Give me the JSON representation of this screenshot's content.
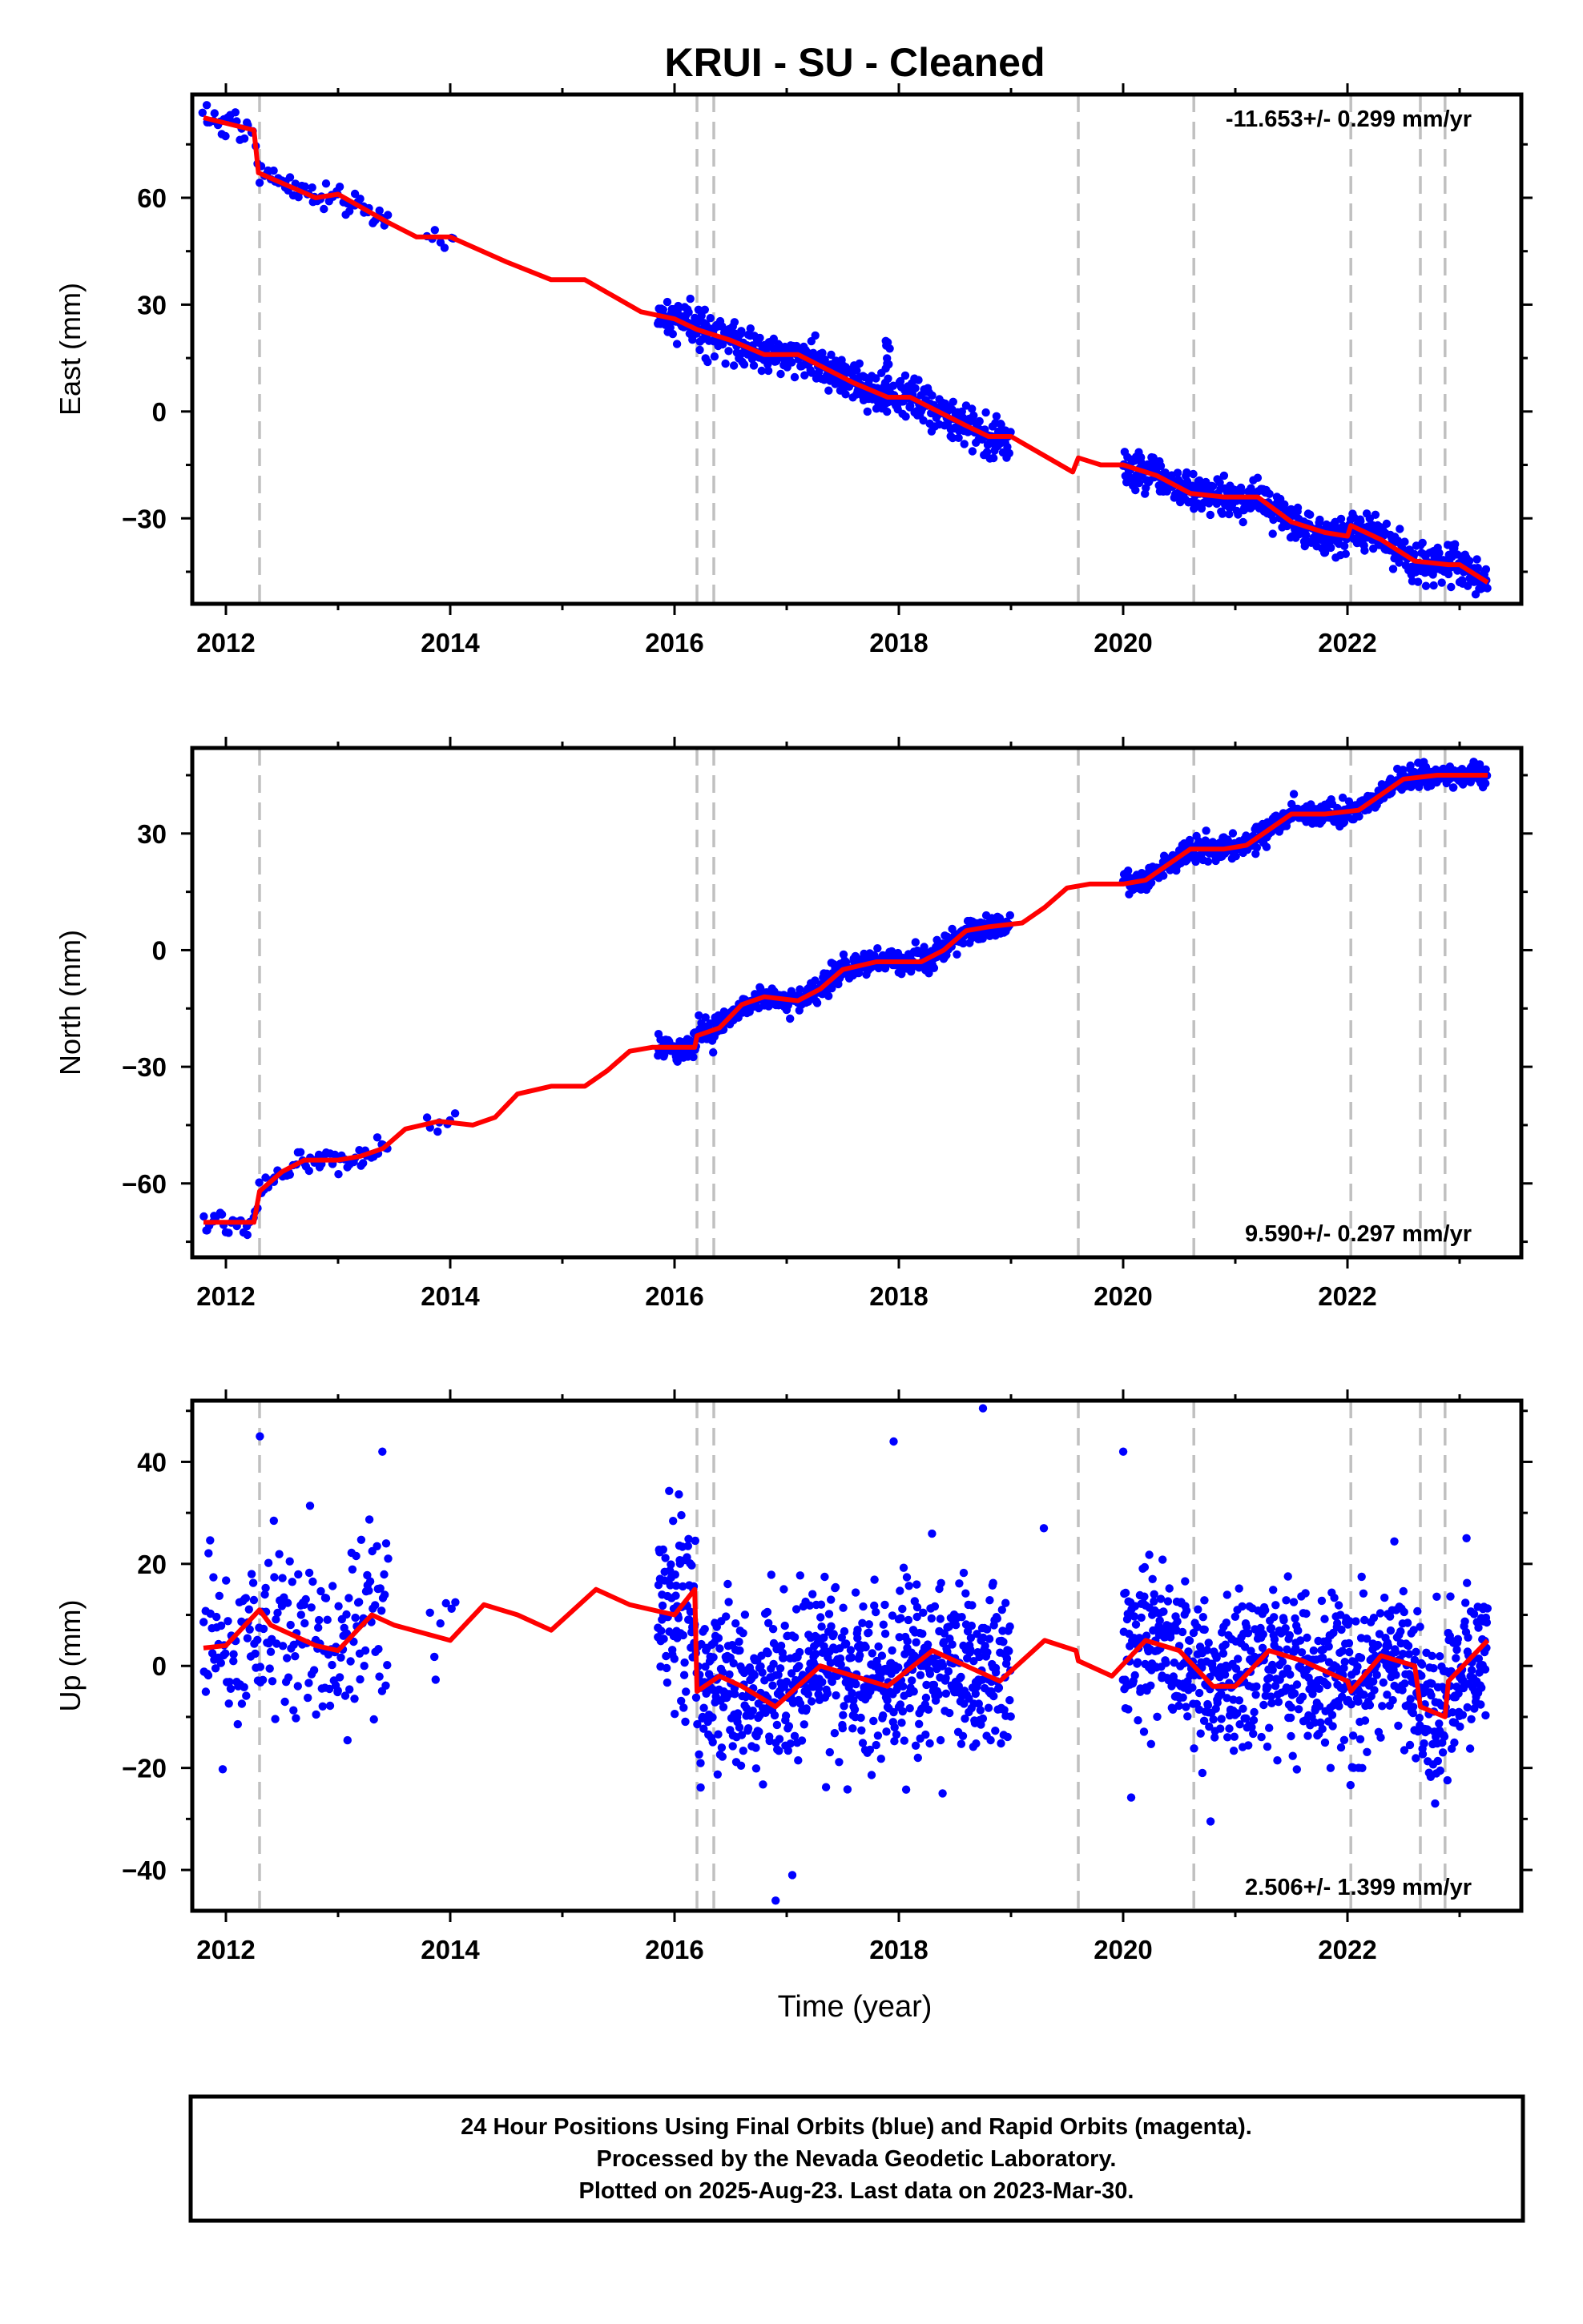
{
  "title": "KRUI  - SU - Cleaned",
  "xlabel": "Time (year)",
  "footer": {
    "line1": "24 Hour Positions Using Final Orbits (blue) and Rapid Orbits (magenta).",
    "line2": "Processed by the Nevada Geodetic Laboratory.",
    "line3": "Plotted on 2025-Aug-23. Last data on 2023-Mar-30."
  },
  "chart_data": [
    {
      "type": "scatter",
      "name": "East",
      "ylabel": "East (mm)",
      "rate_label": "-11.653+/- 0.299 mm/yr",
      "rate_position": "top-right",
      "xlim": [
        2011.7,
        2023.55
      ],
      "ylim": [
        -54,
        89
      ],
      "xticks": [
        2012,
        2014,
        2016,
        2018,
        2020,
        2022
      ],
      "yticks": [
        -30,
        0,
        30,
        60
      ],
      "ytick_labels": [
        "−30",
        "0",
        "30",
        "60"
      ],
      "events": [
        2012.3,
        2016.2,
        2016.35,
        2019.6,
        2020.63,
        2022.03,
        2022.65,
        2022.87
      ],
      "data_segments": [
        [
          2011.8,
          2013.45,
          0.02
        ],
        [
          2013.8,
          2014.05,
          0.04
        ],
        [
          2015.85,
          2019.0,
          0.006
        ],
        [
          2020.0,
          2023.25,
          0.006
        ]
      ],
      "model": [
        [
          2011.8,
          82.5
        ],
        [
          2012.25,
          79
        ],
        [
          2012.29,
          67
        ],
        [
          2012.8,
          60
        ],
        [
          2013.0,
          61
        ],
        [
          2013.45,
          53
        ],
        [
          2013.7,
          49
        ],
        [
          2014.0,
          49
        ],
        [
          2014.5,
          42
        ],
        [
          2014.9,
          37
        ],
        [
          2015.2,
          37
        ],
        [
          2015.7,
          28
        ],
        [
          2016.0,
          26
        ],
        [
          2016.2,
          23
        ],
        [
          2016.5,
          20
        ],
        [
          2016.8,
          16
        ],
        [
          2017.1,
          16
        ],
        [
          2017.6,
          8
        ],
        [
          2017.9,
          4
        ],
        [
          2018.1,
          4
        ],
        [
          2018.6,
          -4
        ],
        [
          2018.8,
          -7
        ],
        [
          2019.0,
          -7
        ],
        [
          2019.55,
          -17
        ],
        [
          2019.6,
          -13
        ],
        [
          2019.8,
          -15
        ],
        [
          2020.0,
          -15
        ],
        [
          2020.3,
          -18
        ],
        [
          2020.6,
          -23
        ],
        [
          2020.9,
          -24
        ],
        [
          2021.2,
          -24
        ],
        [
          2021.5,
          -31
        ],
        [
          2021.8,
          -34
        ],
        [
          2022.0,
          -35
        ],
        [
          2022.03,
          -32
        ],
        [
          2022.3,
          -36
        ],
        [
          2022.6,
          -42
        ],
        [
          2022.9,
          -43
        ],
        [
          2023.0,
          -43
        ],
        [
          2023.25,
          -48
        ]
      ],
      "noise": [
        2.0,
        2.8
      ],
      "spikes": [
        [
          2017.9,
          20,
          10
        ]
      ]
    },
    {
      "type": "scatter",
      "name": "North",
      "ylabel": "North (mm)",
      "rate_label": "9.590+/- 0.297 mm/yr",
      "rate_position": "bottom-right",
      "xlim": [
        2011.7,
        2023.55
      ],
      "ylim": [
        -79,
        52
      ],
      "xticks": [
        2012,
        2014,
        2016,
        2018,
        2020,
        2022
      ],
      "yticks": [
        -60,
        -30,
        0,
        30
      ],
      "ytick_labels": [
        "−60",
        "−30",
        "0",
        "30"
      ],
      "events": [
        2012.3,
        2016.2,
        2016.35,
        2019.6,
        2020.63,
        2022.03,
        2022.65,
        2022.87
      ],
      "data_segments": [
        [
          2011.8,
          2013.45,
          0.02
        ],
        [
          2013.8,
          2014.05,
          0.04
        ],
        [
          2015.85,
          2019.0,
          0.006
        ],
        [
          2020.0,
          2023.25,
          0.006
        ]
      ],
      "model": [
        [
          2011.8,
          -70
        ],
        [
          2012.25,
          -70
        ],
        [
          2012.3,
          -62
        ],
        [
          2012.5,
          -57
        ],
        [
          2012.7,
          -54
        ],
        [
          2013.0,
          -54
        ],
        [
          2013.2,
          -53
        ],
        [
          2013.4,
          -51
        ],
        [
          2013.6,
          -46
        ],
        [
          2013.9,
          -44
        ],
        [
          2014.2,
          -45
        ],
        [
          2014.4,
          -43
        ],
        [
          2014.6,
          -37
        ],
        [
          2014.9,
          -35
        ],
        [
          2015.2,
          -35
        ],
        [
          2015.4,
          -31
        ],
        [
          2015.6,
          -26
        ],
        [
          2015.8,
          -25
        ],
        [
          2016.18,
          -25
        ],
        [
          2016.2,
          -22
        ],
        [
          2016.4,
          -20
        ],
        [
          2016.6,
          -14
        ],
        [
          2016.8,
          -12
        ],
        [
          2017.1,
          -13
        ],
        [
          2017.3,
          -10
        ],
        [
          2017.5,
          -5
        ],
        [
          2017.8,
          -3
        ],
        [
          2018.2,
          -3
        ],
        [
          2018.4,
          0
        ],
        [
          2018.6,
          5
        ],
        [
          2018.8,
          6
        ],
        [
          2019.1,
          7
        ],
        [
          2019.3,
          11
        ],
        [
          2019.5,
          16
        ],
        [
          2019.7,
          17
        ],
        [
          2020.0,
          17
        ],
        [
          2020.2,
          18
        ],
        [
          2020.4,
          22
        ],
        [
          2020.6,
          26
        ],
        [
          2020.9,
          26
        ],
        [
          2021.1,
          27
        ],
        [
          2021.3,
          31
        ],
        [
          2021.5,
          35
        ],
        [
          2021.8,
          35
        ],
        [
          2022.1,
          36
        ],
        [
          2022.3,
          40
        ],
        [
          2022.5,
          44
        ],
        [
          2022.8,
          45
        ],
        [
          2023.25,
          45
        ]
      ],
      "noise": [
        1.5,
        1.6
      ],
      "spikes": []
    },
    {
      "type": "scatter",
      "name": "Up",
      "ylabel": "Up (mm)",
      "rate_label": "2.506+/- 1.399 mm/yr",
      "rate_position": "bottom-right",
      "xlim": [
        2011.7,
        2023.55
      ],
      "ylim": [
        -48,
        52
      ],
      "xticks": [
        2012,
        2014,
        2016,
        2018,
        2020,
        2022
      ],
      "yticks": [
        -40,
        -20,
        0,
        20,
        40
      ],
      "ytick_labels": [
        "−40",
        "−20",
        "0",
        "20",
        "40"
      ],
      "events": [
        2012.3,
        2016.2,
        2016.35,
        2019.6,
        2020.63,
        2022.03,
        2022.65,
        2022.87
      ],
      "data_segments": [
        [
          2011.8,
          2013.45,
          0.008
        ],
        [
          2013.8,
          2014.05,
          0.04
        ],
        [
          2015.85,
          2019.0,
          0.004
        ],
        [
          2020.0,
          2023.25,
          0.004
        ]
      ],
      "model": [
        [
          2011.8,
          3.5
        ],
        [
          2012.0,
          4
        ],
        [
          2012.3,
          11
        ],
        [
          2012.4,
          8
        ],
        [
          2012.8,
          4
        ],
        [
          2013.0,
          3
        ],
        [
          2013.3,
          10
        ],
        [
          2013.5,
          8
        ],
        [
          2014.0,
          5
        ],
        [
          2014.3,
          12
        ],
        [
          2014.6,
          10
        ],
        [
          2014.9,
          7
        ],
        [
          2015.3,
          15
        ],
        [
          2015.6,
          12
        ],
        [
          2016.0,
          10
        ],
        [
          2016.18,
          15
        ],
        [
          2016.2,
          -5
        ],
        [
          2016.4,
          -2
        ],
        [
          2016.6,
          -4
        ],
        [
          2016.9,
          -8
        ],
        [
          2017.3,
          0
        ],
        [
          2017.6,
          -2
        ],
        [
          2017.9,
          -4
        ],
        [
          2018.3,
          3
        ],
        [
          2018.6,
          0
        ],
        [
          2018.9,
          -3
        ],
        [
          2019.3,
          5
        ],
        [
          2019.58,
          3
        ],
        [
          2019.6,
          1
        ],
        [
          2019.9,
          -2
        ],
        [
          2020.2,
          5
        ],
        [
          2020.5,
          3
        ],
        [
          2020.8,
          -4
        ],
        [
          2021.0,
          -4
        ],
        [
          2021.3,
          3
        ],
        [
          2021.6,
          1
        ],
        [
          2022.0,
          -3
        ],
        [
          2022.03,
          -5
        ],
        [
          2022.3,
          2
        ],
        [
          2022.6,
          0
        ],
        [
          2022.65,
          -8
        ],
        [
          2022.87,
          -10
        ],
        [
          2022.9,
          -3
        ],
        [
          2023.25,
          5
        ]
      ],
      "noise": [
        9.0,
        8.0
      ],
      "spikes": [
        [
          2012.3,
          45,
          1
        ],
        [
          2017.95,
          44,
          1
        ],
        [
          2018.75,
          50.5,
          1
        ],
        [
          2019.3,
          27,
          1
        ],
        [
          2020.0,
          42,
          1
        ],
        [
          2016.9,
          -46,
          1
        ],
        [
          2017.05,
          -41,
          1
        ],
        [
          2013.4,
          42,
          1
        ]
      ]
    }
  ]
}
